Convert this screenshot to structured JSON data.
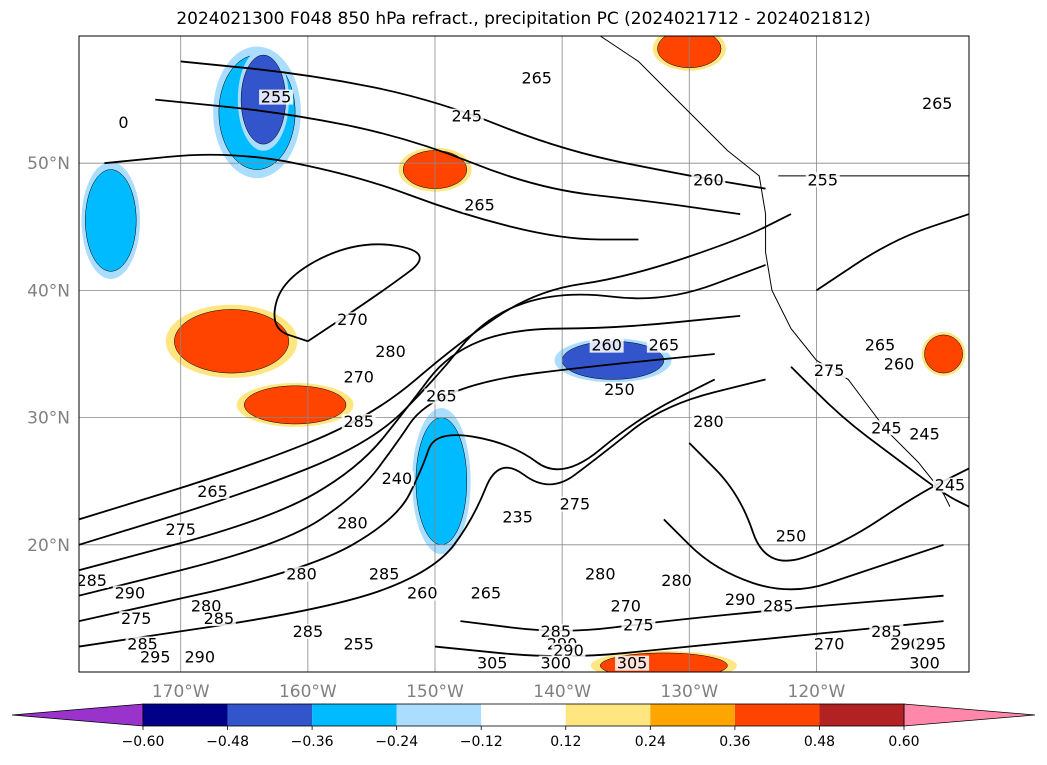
{
  "chart_data": {
    "type": "heatmap",
    "title": "2024021300 F048 850 hPa refract., precipitation PC (2024021712 - 2024021812)",
    "lon_range": [
      -178,
      -108
    ],
    "lat_range": [
      10,
      60
    ],
    "x_ticks": [
      {
        "lon": -170,
        "label": "170°W"
      },
      {
        "lon": -160,
        "label": "160°W"
      },
      {
        "lon": -150,
        "label": "150°W"
      },
      {
        "lon": -140,
        "label": "140°W"
      },
      {
        "lon": -130,
        "label": "130°W"
      },
      {
        "lon": -120,
        "label": "120°W"
      }
    ],
    "y_ticks": [
      {
        "lat": 20,
        "label": "20°N"
      },
      {
        "lat": 30,
        "label": "30°N"
      },
      {
        "lat": 40,
        "label": "40°N"
      },
      {
        "lat": 50,
        "label": "50°N"
      }
    ],
    "grid": true,
    "colorbar": {
      "orientation": "horizontal",
      "extend": "both",
      "boundaries": [
        -0.72,
        -0.6,
        -0.48,
        -0.36,
        -0.24,
        -0.12,
        0.12,
        0.24,
        0.36,
        0.48,
        0.6,
        0.72
      ],
      "colors": [
        "#9933cc",
        "#000088",
        "#3355cc",
        "#00bbff",
        "#aaddff",
        "#ffffff",
        "#ffe680",
        "#ffa500",
        "#ff4400",
        "#b22222",
        "#ff88aa"
      ],
      "tick_labels": [
        "−0.60",
        "−0.48",
        "−0.36",
        "−0.24",
        "−0.12",
        "0.12",
        "0.24",
        "0.36",
        "0.48",
        "0.60"
      ]
    },
    "contour_labels": [
      {
        "text": "255",
        "lon": -162.5,
        "lat": 55
      },
      {
        "text": "245",
        "lon": -147.5,
        "lat": 53.5
      },
      {
        "text": "265",
        "lon": -142,
        "lat": 56.5
      },
      {
        "text": "260",
        "lon": -128.5,
        "lat": 48.5
      },
      {
        "text": "255",
        "lon": -119.5,
        "lat": 48.5
      },
      {
        "text": "265",
        "lon": -110.5,
        "lat": 54.5
      },
      {
        "text": "265",
        "lon": -146.5,
        "lat": 46.5
      },
      {
        "text": "270",
        "lon": -156.5,
        "lat": 37.5
      },
      {
        "text": "270",
        "lon": -156,
        "lat": 33
      },
      {
        "text": "280",
        "lon": -153.5,
        "lat": 35
      },
      {
        "text": "285",
        "lon": -156,
        "lat": 29.5
      },
      {
        "text": "260",
        "lon": -136.5,
        "lat": 35.5
      },
      {
        "text": "265",
        "lon": -132,
        "lat": 35.5
      },
      {
        "text": "250",
        "lon": -135.5,
        "lat": 32
      },
      {
        "text": "280",
        "lon": -128.5,
        "lat": 29.5
      },
      {
        "text": "265",
        "lon": -115,
        "lat": 35.5
      },
      {
        "text": "260",
        "lon": -113.5,
        "lat": 34
      },
      {
        "text": "265",
        "lon": -149.5,
        "lat": 31.5
      },
      {
        "text": "240",
        "lon": -153,
        "lat": 25
      },
      {
        "text": "235",
        "lon": -143.5,
        "lat": 22
      },
      {
        "text": "275",
        "lon": -139,
        "lat": 23
      },
      {
        "text": "280",
        "lon": -137,
        "lat": 17.5
      },
      {
        "text": "265",
        "lon": -167.5,
        "lat": 24
      },
      {
        "text": "275",
        "lon": -170,
        "lat": 21
      },
      {
        "text": "280",
        "lon": -156.5,
        "lat": 21.5
      },
      {
        "text": "285",
        "lon": -154,
        "lat": 17.5
      },
      {
        "text": "280",
        "lon": -160.5,
        "lat": 17.5
      },
      {
        "text": "285",
        "lon": -177,
        "lat": 17
      },
      {
        "text": "290",
        "lon": -174,
        "lat": 16
      },
      {
        "text": "280",
        "lon": -168,
        "lat": 15
      },
      {
        "text": "285",
        "lon": -167,
        "lat": 14
      },
      {
        "text": "275",
        "lon": -173.5,
        "lat": 14
      },
      {
        "text": "285",
        "lon": -160,
        "lat": 13
      },
      {
        "text": "260",
        "lon": -151,
        "lat": 16
      },
      {
        "text": "265",
        "lon": -146,
        "lat": 16
      },
      {
        "text": "255",
        "lon": -156,
        "lat": 12
      },
      {
        "text": "285",
        "lon": -173,
        "lat": 12
      },
      {
        "text": "295",
        "lon": -172,
        "lat": 11
      },
      {
        "text": "290",
        "lon": -168.5,
        "lat": 11
      },
      {
        "text": "285",
        "lon": -140.5,
        "lat": 13
      },
      {
        "text": "290",
        "lon": -140,
        "lat": 12
      },
      {
        "text": "290",
        "lon": -139.5,
        "lat": 11.5
      },
      {
        "text": "300",
        "lon": -140.5,
        "lat": 10.5
      },
      {
        "text": "305",
        "lon": -145.5,
        "lat": 10.5
      },
      {
        "text": "305",
        "lon": -134.5,
        "lat": 10.5
      },
      {
        "text": "280",
        "lon": -131,
        "lat": 17
      },
      {
        "text": "290",
        "lon": -126,
        "lat": 15.5
      },
      {
        "text": "285",
        "lon": -123,
        "lat": 15
      },
      {
        "text": "270",
        "lon": -135,
        "lat": 15
      },
      {
        "text": "275",
        "lon": -134,
        "lat": 13.5
      },
      {
        "text": "250",
        "lon": -122,
        "lat": 20.5
      },
      {
        "text": "270",
        "lon": -119,
        "lat": 12
      },
      {
        "text": "285",
        "lon": -114.5,
        "lat": 13
      },
      {
        "text": "290",
        "lon": -113,
        "lat": 12
      },
      {
        "text": "295",
        "lon": -111,
        "lat": 12
      },
      {
        "text": "300",
        "lon": -111.5,
        "lat": 10.5
      },
      {
        "text": "275",
        "lon": -119,
        "lat": 33.5
      },
      {
        "text": "245",
        "lon": -114.5,
        "lat": 29
      },
      {
        "text": "245",
        "lon": -111.5,
        "lat": 28.5
      },
      {
        "text": "245",
        "lon": -109.5,
        "lat": 24.5
      },
      {
        "text": "0",
        "lon": -174.5,
        "lat": 53
      }
    ],
    "precip_regions": [
      {
        "name": "neg-pacific-north",
        "level": -0.36,
        "lon": -164,
        "lat": 54,
        "w": 6,
        "h": 9
      },
      {
        "name": "neg-pacific-north-core",
        "level": -0.48,
        "lon": -163.5,
        "lat": 55,
        "w": 3.5,
        "h": 7
      },
      {
        "name": "neg-west-edge",
        "level": -0.36,
        "lon": -175.5,
        "lat": 45.5,
        "w": 4,
        "h": 8
      },
      {
        "name": "neg-trough-core",
        "level": -0.36,
        "lon": -149.5,
        "lat": 25,
        "w": 4,
        "h": 10
      },
      {
        "name": "neg-central-band",
        "level": -0.48,
        "lon": -136,
        "lat": 34.5,
        "w": 8,
        "h": 3
      },
      {
        "name": "pos-alaska",
        "level": 0.36,
        "lon": -130,
        "lat": 59,
        "w": 5,
        "h": 3
      },
      {
        "name": "pos-gulf",
        "level": 0.36,
        "lon": -150,
        "lat": 49.5,
        "w": 5,
        "h": 3
      },
      {
        "name": "pos-west-mid",
        "level": 0.36,
        "lon": -166,
        "lat": 36,
        "w": 9,
        "h": 5
      },
      {
        "name": "pos-west-south",
        "level": 0.36,
        "lon": -161,
        "lat": 31,
        "w": 8,
        "h": 3
      },
      {
        "name": "pos-baja",
        "level": 0.36,
        "lon": -110,
        "lat": 35,
        "w": 3,
        "h": 3
      },
      {
        "name": "pos-south",
        "level": 0.36,
        "lon": -132,
        "lat": 10.5,
        "w": 10,
        "h": 2
      }
    ]
  }
}
